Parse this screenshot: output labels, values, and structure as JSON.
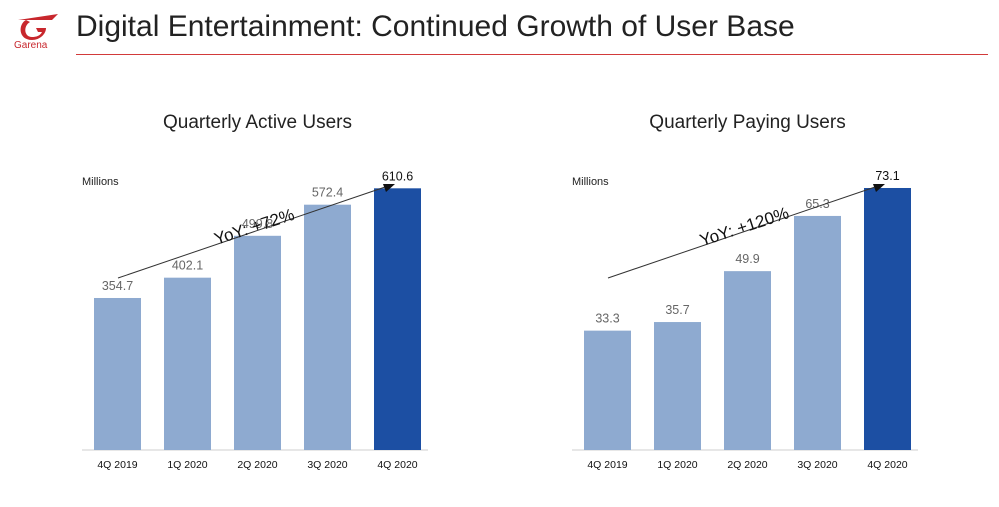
{
  "header": {
    "brand": "Garena",
    "title": "Digital Entertainment: Continued Growth of User Base",
    "accent_color": "#c8272d"
  },
  "chart_data": [
    {
      "type": "bar",
      "title": "Quarterly Active Users",
      "unit_label": "Millions",
      "categories": [
        "4Q 2019",
        "1Q 2020",
        "2Q 2020",
        "3Q 2020",
        "4Q 2020"
      ],
      "values": [
        354.7,
        402.1,
        499.8,
        572.4,
        610.6
      ],
      "value_labels": [
        "354.7",
        "402.1",
        "499.8",
        "572.4",
        "610.6"
      ],
      "annotation": "YoY: +72%",
      "ylim": [
        0,
        700
      ],
      "highlight_index": 4,
      "colors": {
        "bar": "#8eaad0",
        "highlight": "#1c4fa3",
        "label": "#666666",
        "highlight_label": "#111111"
      }
    },
    {
      "type": "bar",
      "title": "Quarterly Paying Users",
      "unit_label": "Millions",
      "categories": [
        "4Q 2019",
        "1Q 2020",
        "2Q 2020",
        "3Q 2020",
        "4Q 2020"
      ],
      "values": [
        33.3,
        35.7,
        49.9,
        65.3,
        73.1
      ],
      "value_labels": [
        "33.3",
        "35.7",
        "49.9",
        "65.3",
        "73.1"
      ],
      "annotation": "YoY: +120%",
      "ylim": [
        0,
        83.7
      ],
      "highlight_index": 4,
      "colors": {
        "bar": "#8eaad0",
        "highlight": "#1c4fa3",
        "label": "#666666",
        "highlight_label": "#111111"
      }
    }
  ]
}
